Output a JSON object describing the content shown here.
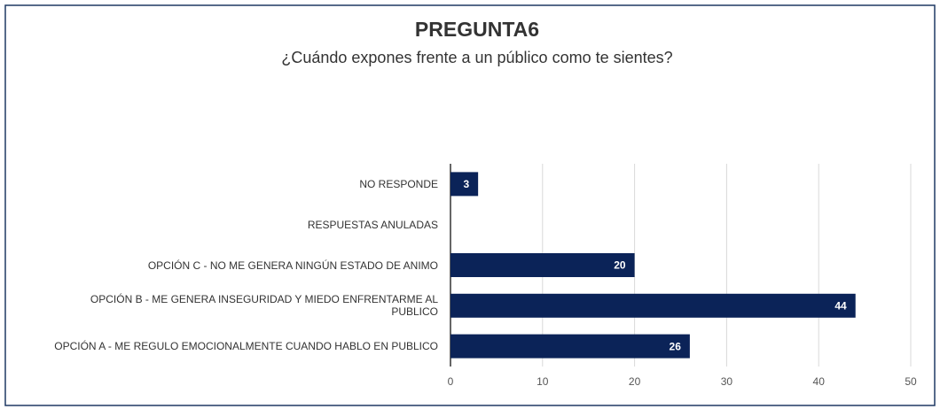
{
  "chart_data": {
    "type": "hbar",
    "title": "PREGUNTA6",
    "subtitle": "¿Cuándo expones frente a un público como te sientes?",
    "categories": [
      "NO RESPONDE",
      "RESPUESTAS ANULADAS",
      "OPCIÓN C - NO ME GENERA NINGÚN ESTADO DE ANIMO",
      "OPCIÓN B - ME GENERA INSEGURIDAD Y MIEDO ENFRENTARME AL PUBLICO",
      "OPCIÓN A - ME REGULO EMOCIONALMENTE CUANDO HABLO EN PUBLICO"
    ],
    "values": [
      3,
      null,
      20,
      44,
      26
    ],
    "color": "#0b2358",
    "xlim": [
      0,
      50
    ],
    "xticks": [
      0,
      10,
      20,
      30,
      40,
      50
    ],
    "grid": true
  }
}
